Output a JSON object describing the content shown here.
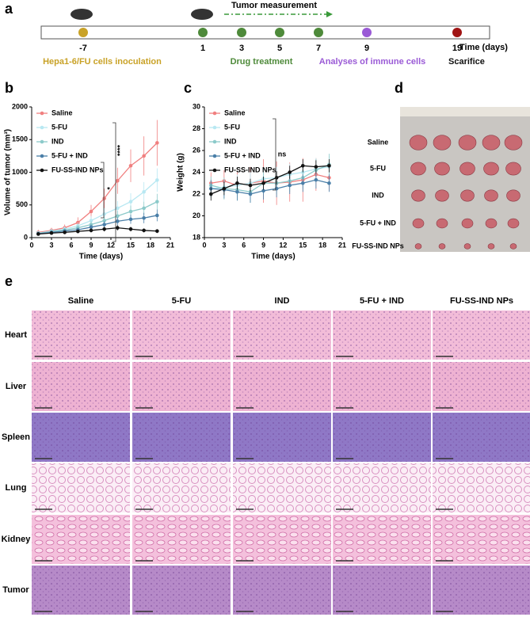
{
  "panel_labels": [
    "a",
    "b",
    "c",
    "d",
    "e"
  ],
  "timeline": {
    "days": [
      -7,
      1,
      3,
      5,
      7,
      9,
      19
    ],
    "axis_label": "Time  (days)",
    "measurement": "Tumor measurement",
    "events": [
      "Hepa1-6/FU cells inoculation",
      "Drug treatment",
      "Analyses  of immune cells",
      "Scarifice"
    ]
  },
  "chart_data": [
    {
      "type": "line",
      "x_label": "Time  (days)",
      "y_label": "Volume of tumor (mm³)",
      "x": [
        1,
        3,
        5,
        7,
        9,
        11,
        13,
        15,
        17,
        19
      ],
      "xlim": [
        0,
        21
      ],
      "xticks": [
        0,
        3,
        6,
        9,
        12,
        15,
        18,
        21
      ],
      "ylim": [
        0,
        2000
      ],
      "yticks": [
        0,
        500,
        1000,
        1500,
        2000
      ],
      "legend": "upper left",
      "series": [
        {
          "name": "Saline",
          "color": "#f07f7f",
          "values": [
            80,
            110,
            150,
            230,
            400,
            600,
            870,
            1100,
            1250,
            1450
          ],
          "errors": [
            40,
            40,
            50,
            80,
            100,
            150,
            200,
            250,
            300,
            350
          ]
        },
        {
          "name": "5-FU",
          "color": "#b8e8f2",
          "values": [
            70,
            100,
            130,
            180,
            260,
            360,
            450,
            550,
            700,
            880
          ],
          "errors": [
            30,
            30,
            40,
            50,
            70,
            90,
            110,
            130,
            150,
            180
          ]
        },
        {
          "name": "IND",
          "color": "#8ccaca",
          "values": [
            65,
            90,
            115,
            150,
            200,
            260,
            330,
            400,
            450,
            550
          ],
          "errors": [
            30,
            30,
            30,
            40,
            50,
            60,
            80,
            90,
            100,
            120
          ]
        },
        {
          "name": "5-FU + IND",
          "color": "#4a7fa8",
          "values": [
            60,
            80,
            100,
            120,
            160,
            200,
            250,
            280,
            300,
            340
          ],
          "errors": [
            25,
            25,
            30,
            30,
            40,
            50,
            60,
            70,
            80,
            90
          ]
        },
        {
          "name": "FU-SS-IND NPs",
          "color": "#111111",
          "values": [
            55,
            70,
            80,
            95,
            110,
            130,
            150,
            130,
            110,
            100
          ],
          "errors": [
            20,
            20,
            20,
            25,
            30,
            35,
            40,
            35,
            30,
            30
          ]
        }
      ],
      "annotations": [
        "****",
        "*"
      ]
    },
    {
      "type": "line",
      "x_label": "Time  (days)",
      "y_label": "Weight (g)",
      "x": [
        1,
        3,
        5,
        7,
        9,
        11,
        13,
        15,
        17,
        19
      ],
      "xlim": [
        0,
        21
      ],
      "xticks": [
        0,
        3,
        6,
        9,
        12,
        15,
        18,
        21
      ],
      "ylim": [
        18,
        30
      ],
      "yticks": [
        18,
        20,
        22,
        24,
        26,
        28,
        30
      ],
      "legend": "upper left",
      "series": [
        {
          "name": "Saline",
          "color": "#f07f7f",
          "values": [
            23,
            23.2,
            22.8,
            23,
            23.2,
            23,
            23.1,
            23.3,
            23.8,
            23.5
          ],
          "errors": [
            1,
            1,
            1.2,
            1.5,
            2,
            2,
            1.8,
            2,
            1.5,
            1.2
          ]
        },
        {
          "name": "5-FU",
          "color": "#b8e8f2",
          "values": [
            22.5,
            22.6,
            22.8,
            23,
            23.4,
            23.5,
            23.8,
            24,
            24.3,
            24.5
          ],
          "errors": [
            0.8,
            0.8,
            1,
            1,
            1,
            1,
            1,
            1,
            1,
            1
          ]
        },
        {
          "name": "IND",
          "color": "#8ccaca",
          "values": [
            22.8,
            22.5,
            22.4,
            22.2,
            23,
            23,
            23.2,
            23.5,
            24.2,
            24.7
          ],
          "errors": [
            0.8,
            1,
            1,
            1,
            1,
            1,
            1,
            1,
            1,
            1
          ]
        },
        {
          "name": "5-FU + IND",
          "color": "#4a7fa8",
          "values": [
            22.5,
            22.4,
            22.2,
            22,
            22.3,
            22.5,
            22.8,
            23,
            23.3,
            23
          ],
          "errors": [
            0.8,
            0.8,
            0.8,
            0.8,
            0.8,
            0.8,
            0.8,
            0.8,
            0.8,
            0.8
          ]
        },
        {
          "name": "FU-SS-IND NPs",
          "color": "#111111",
          "values": [
            22,
            22.5,
            23,
            22.8,
            23,
            23.5,
            24,
            24.6,
            24.5,
            24.6
          ],
          "errors": [
            0.6,
            0.6,
            0.6,
            0.6,
            0.6,
            0.6,
            0.6,
            0.6,
            0.6,
            0.6
          ]
        }
      ],
      "annotations": [
        "ns"
      ]
    }
  ],
  "tumor_photo": {
    "rows": [
      "Saline",
      "5-FU",
      "IND",
      "5-FU + IND",
      "FU-SS-IND NPs"
    ]
  },
  "histology": {
    "columns": [
      "Saline",
      "5-FU",
      "IND",
      "5-FU + IND",
      "FU-SS-IND NPs"
    ],
    "rows": [
      "Heart",
      "Liver",
      "Spleen",
      "Lung",
      "Kidney",
      "Tumor"
    ]
  }
}
